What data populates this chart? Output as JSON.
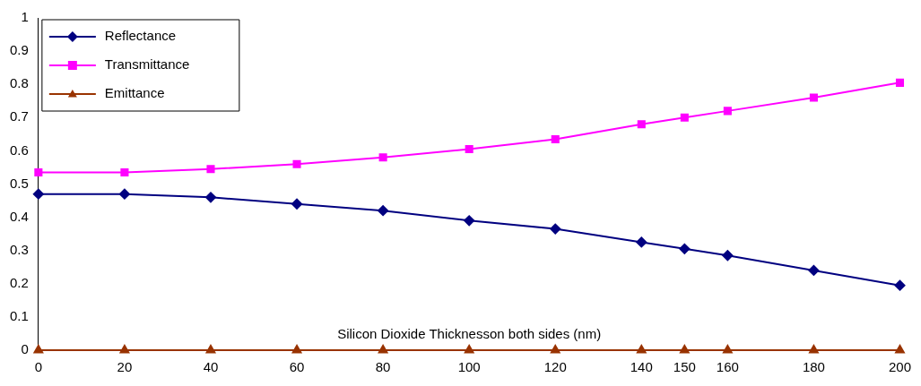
{
  "chart_data": {
    "type": "line",
    "xlabel": "Silicon Dioxide Thicknesson both sides (nm)",
    "x": [
      0,
      20,
      40,
      60,
      80,
      100,
      120,
      140,
      150,
      160,
      180,
      200
    ],
    "series": [
      {
        "name": "Reflectance",
        "color": "#000080",
        "marker": "diamond",
        "values": [
          0.47,
          0.47,
          0.46,
          0.44,
          0.42,
          0.39,
          0.365,
          0.325,
          0.305,
          0.285,
          0.24,
          0.195
        ]
      },
      {
        "name": "Transmittance",
        "color": "#ff00ff",
        "marker": "square",
        "values": [
          0.535,
          0.535,
          0.545,
          0.56,
          0.58,
          0.605,
          0.635,
          0.68,
          0.7,
          0.72,
          0.76,
          0.805
        ]
      },
      {
        "name": "Emittance",
        "color": "#993300",
        "marker": "triangle",
        "values": [
          0,
          0,
          0,
          0,
          0,
          0,
          0,
          0,
          0,
          0,
          0,
          0
        ]
      }
    ],
    "xlim": [
      0,
      200
    ],
    "xticks": [
      0,
      20,
      40,
      60,
      80,
      100,
      120,
      140,
      150,
      160,
      180,
      200
    ],
    "ylim": [
      0,
      1
    ],
    "yticks": [
      0,
      0.1,
      0.2,
      0.3,
      0.4,
      0.5,
      0.6,
      0.7,
      0.8,
      0.9,
      1
    ],
    "grid": false,
    "legend": "top left",
    "line_style": "solid"
  }
}
